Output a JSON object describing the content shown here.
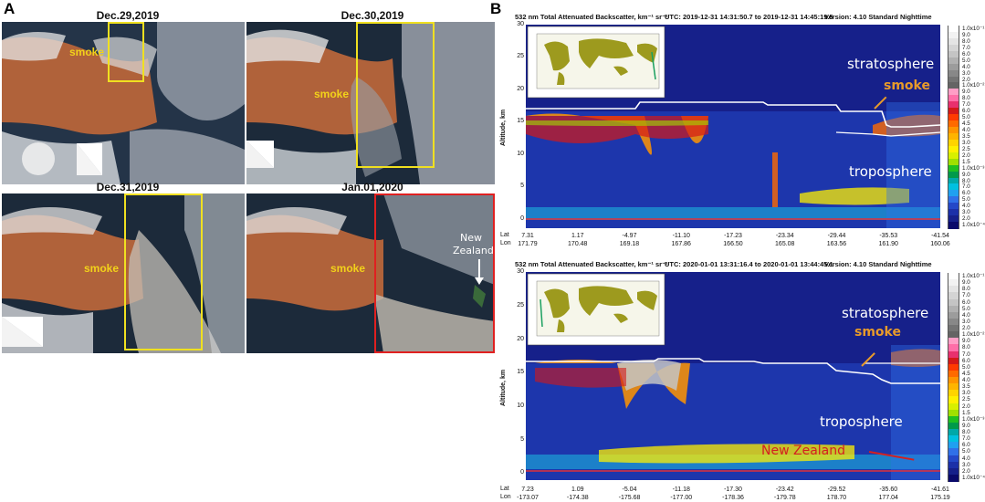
{
  "panel_a": {
    "letter": "A",
    "images": [
      {
        "date": "Dec.29,2019",
        "smoke_label": "smoke"
      },
      {
        "date": "Dec.30,2019",
        "smoke_label": "smoke"
      },
      {
        "date": "Dec.31,2019",
        "smoke_label": "smoke"
      },
      {
        "date": "Jan.01,2020",
        "smoke_label": "smoke",
        "extra_label": "New Zealand"
      }
    ],
    "colors": {
      "yellow_box": "#f0e020",
      "red_box": "#e02020"
    }
  },
  "panel_b": {
    "letter": "B",
    "plots": [
      {
        "title": "532 nm Total Attenuated Backscatter, km⁻¹ sr⁻¹",
        "utc": "UTC:  2019-12-31 14:31:50.7  to  2019-12-31 14:45:19.5",
        "version": "Version: 4.10  Standard  Nighttime",
        "ylabel": "Altitude, km",
        "yticks": [
          "30",
          "25",
          "20",
          "15",
          "10",
          "5",
          "0"
        ],
        "lat_label": "Lat",
        "lon_label": "Lon",
        "lat": [
          "7.31",
          "1.17",
          "-4.97",
          "-11.10",
          "-17.23",
          "-23.34",
          "-29.44",
          "-35.53",
          "-41.54"
        ],
        "lon": [
          "171.79",
          "170.48",
          "169.18",
          "167.86",
          "166.50",
          "165.08",
          "163.56",
          "161.90",
          "160.06"
        ],
        "stratosphere": "stratosphere",
        "troposphere": "troposphere",
        "smoke": "smoke"
      },
      {
        "title": "532 nm Total Attenuated Backscatter, km⁻¹ sr⁻¹",
        "utc": "UTC:  2020-01-01 13:31:16.4  to  2020-01-01 13:44:45.1",
        "version": "Version: 4.10  Standard  Nighttime",
        "ylabel": "Altitude, km",
        "yticks": [
          "30",
          "25",
          "20",
          "15",
          "10",
          "5",
          "0"
        ],
        "lat_label": "Lat",
        "lon_label": "Lon",
        "lat": [
          "7.23",
          "1.09",
          "-5.04",
          "-11.18",
          "-17.30",
          "-23.42",
          "-29.52",
          "-35.60",
          "-41.61"
        ],
        "lon": [
          "-173.07",
          "-174.38",
          "-175.68",
          "-177.00",
          "-178.36",
          "-179.78",
          "178.70",
          "177.04",
          "175.19"
        ],
        "stratosphere": "stratosphere",
        "troposphere": "troposphere",
        "smoke": "smoke",
        "new_zealand": "New Zealand"
      }
    ],
    "colorbar_labels": [
      "1.0x10⁻¹",
      "9.0",
      "8.0",
      "7.0",
      "6.0",
      "5.0",
      "4.0",
      "3.0",
      "2.0",
      "1.0x10⁻²",
      "9.0",
      "8.0",
      "7.0",
      "6.0",
      "5.0",
      "4.5",
      "4.0",
      "3.5",
      "3.0",
      "2.5",
      "2.0",
      "1.5",
      "1.0x10⁻³",
      "9.0",
      "8.0",
      "7.0",
      "6.0",
      "5.0",
      "4.0",
      "3.0",
      "2.0",
      "1.0x10⁻⁴"
    ],
    "colorbar_colors": [
      "#ffffff",
      "#f2f2f2",
      "#e4e4e4",
      "#d4d4d4",
      "#c4c4c4",
      "#b0b0b0",
      "#9c9c9c",
      "#888888",
      "#747474",
      "#646464",
      "#ff9ec6",
      "#ff6ea8",
      "#e8306e",
      "#d41818",
      "#ff3a00",
      "#ff6a00",
      "#ff9400",
      "#ffb400",
      "#ffd400",
      "#fff000",
      "#d8f000",
      "#a0e000",
      "#20c020",
      "#009a4a",
      "#00a8a8",
      "#00c0e0",
      "#20a0f0",
      "#3070e8",
      "#2448c8",
      "#1c30a8",
      "#16208a",
      "#0a0a6a"
    ]
  }
}
